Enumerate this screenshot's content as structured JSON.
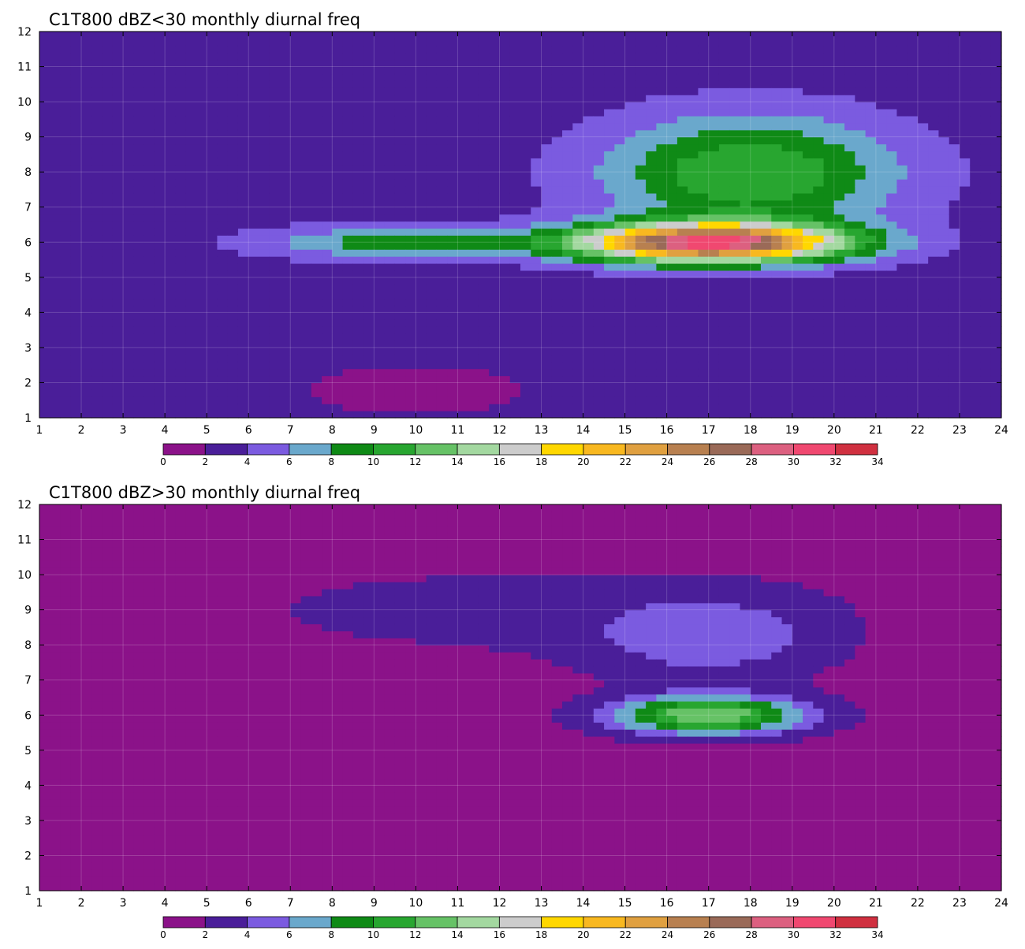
{
  "chart_data": [
    {
      "type": "heatmap",
      "title": "C1T800 dBZ<30 monthly diurnal freq",
      "xlim": [
        1,
        24
      ],
      "ylim": [
        1,
        12
      ],
      "x_ticks": [
        1,
        2,
        3,
        4,
        5,
        6,
        7,
        8,
        9,
        10,
        11,
        12,
        13,
        14,
        15,
        16,
        17,
        18,
        19,
        20,
        21,
        22,
        23,
        24
      ],
      "y_ticks": [
        1,
        2,
        3,
        4,
        5,
        6,
        7,
        8,
        9,
        10,
        11,
        12
      ],
      "grid": true,
      "colorbar_levels": [
        0,
        2,
        4,
        6,
        8,
        10,
        12,
        14,
        16,
        18,
        20,
        22,
        24,
        26,
        28,
        30,
        32,
        34
      ],
      "colorbar_colors": [
        "#8b1289",
        "#4a1e99",
        "#7b5be0",
        "#6aa8cc",
        "#0f8a16",
        "#28a630",
        "#66c266",
        "#a3d8a0",
        "#cccccc",
        "#ffd700",
        "#f8b820",
        "#e0a040",
        "#b88050",
        "#9a6a58",
        "#dc6080",
        "#f04870",
        "#d03040"
      ],
      "field_peak": {
        "x": 17,
        "y": 6,
        "value": 30
      },
      "background_value": 3
    },
    {
      "type": "heatmap",
      "title": "C1T800 dBZ>30 monthly diurnal freq",
      "xlim": [
        1,
        24
      ],
      "ylim": [
        1,
        12
      ],
      "x_ticks": [
        1,
        2,
        3,
        4,
        5,
        6,
        7,
        8,
        9,
        10,
        11,
        12,
        13,
        14,
        15,
        16,
        17,
        18,
        19,
        20,
        21,
        22,
        23,
        24
      ],
      "y_ticks": [
        1,
        2,
        3,
        4,
        5,
        6,
        7,
        8,
        9,
        10,
        11,
        12
      ],
      "grid": true,
      "colorbar_levels": [
        0,
        2,
        4,
        6,
        8,
        10,
        12,
        14,
        16,
        18,
        20,
        22,
        24,
        26,
        28,
        30,
        32,
        34
      ],
      "colorbar_colors": [
        "#8b1289",
        "#4a1e99",
        "#7b5be0",
        "#6aa8cc",
        "#0f8a16",
        "#28a630",
        "#66c266",
        "#a3d8a0",
        "#cccccc",
        "#ffd700",
        "#f8b820",
        "#e0a040",
        "#b88050",
        "#9a6a58",
        "#dc6080",
        "#f04870",
        "#d03040"
      ],
      "field_peak": {
        "x": 17,
        "y": 6,
        "value": 14
      },
      "background_value": 1
    }
  ]
}
